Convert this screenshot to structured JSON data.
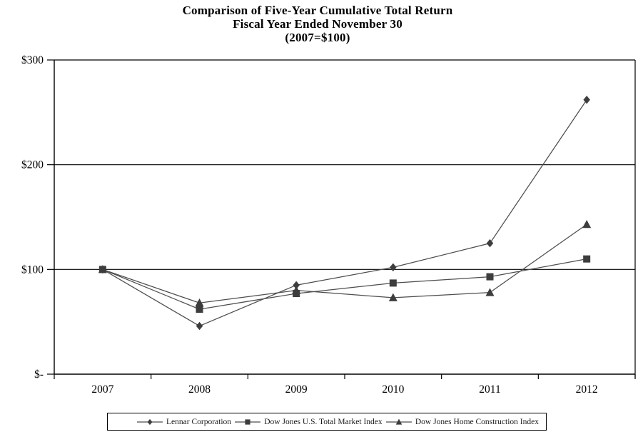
{
  "title": {
    "line1": "Comparison of Five-Year Cumulative Total Return",
    "line2": "Fiscal Year Ended November 30",
    "line3": "(2007=$100)"
  },
  "chart_data": {
    "type": "line",
    "categories": [
      "2007",
      "2008",
      "2009",
      "2010",
      "2011",
      "2012"
    ],
    "series": [
      {
        "name": "Lennar Corporation",
        "marker": "diamond",
        "values": [
          100,
          46,
          85,
          102,
          125,
          262
        ]
      },
      {
        "name": "Dow Jones U.S. Total Market Index",
        "marker": "square",
        "values": [
          100,
          62,
          77,
          87,
          93,
          110
        ]
      },
      {
        "name": "Dow Jones Home Construction Index",
        "marker": "triangle",
        "values": [
          100,
          68,
          80,
          73,
          78,
          143
        ]
      }
    ],
    "y_axis": {
      "min": 0,
      "max": 300,
      "ticks": [
        {
          "label": "$-",
          "value": 0
        },
        {
          "label": "$100",
          "value": 100
        },
        {
          "label": "$200",
          "value": 200
        },
        {
          "label": "$300",
          "value": 300
        }
      ],
      "grid": true
    },
    "xlabel": "",
    "ylabel": "",
    "legend_position": "bottom",
    "colors": {
      "line": "#4d4d4d",
      "marker": "#3d3d3d",
      "axis": "#000000",
      "text": "#000000"
    }
  }
}
